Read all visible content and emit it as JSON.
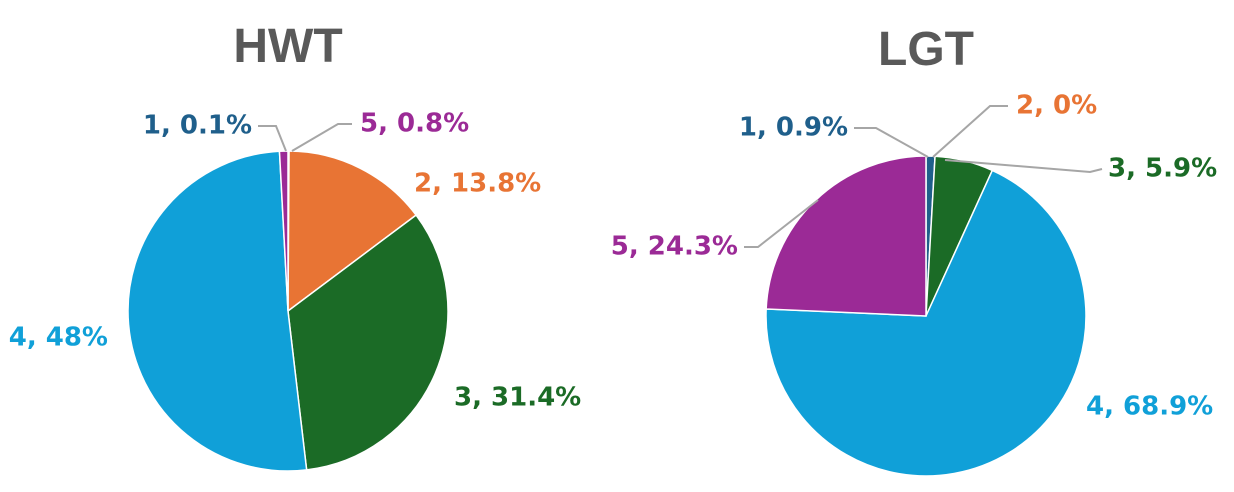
{
  "chart_data": [
    {
      "type": "pie",
      "title": "HWT",
      "slices": [
        {
          "category": "1",
          "value": 0.1,
          "label": "1, 0.1%",
          "color": "#1f5f8b"
        },
        {
          "category": "2",
          "value": 13.8,
          "label": "2, 13.8%",
          "color": "#e87434"
        },
        {
          "category": "3",
          "value": 31.4,
          "label": "3, 31.4%",
          "color": "#1b6b26"
        },
        {
          "category": "4",
          "value": 48.0,
          "label": "4, 48%",
          "color": "#10a0d8"
        },
        {
          "category": "5",
          "value": 0.8,
          "label": "5, 0.8%",
          "color": "#9b2a96"
        }
      ]
    },
    {
      "type": "pie",
      "title": "LGT",
      "slices": [
        {
          "category": "1",
          "value": 0.9,
          "label": "1, 0.9%",
          "color": "#1f5f8b"
        },
        {
          "category": "2",
          "value": 0.0,
          "label": "2, 0%",
          "color": "#e87434"
        },
        {
          "category": "3",
          "value": 5.9,
          "label": "3, 5.9%",
          "color": "#1b6b26"
        },
        {
          "category": "4",
          "value": 68.9,
          "label": "4, 68.9%",
          "color": "#10a0d8"
        },
        {
          "category": "5",
          "value": 24.3,
          "label": "5, 24.3%",
          "color": "#9b2a96"
        }
      ]
    }
  ]
}
